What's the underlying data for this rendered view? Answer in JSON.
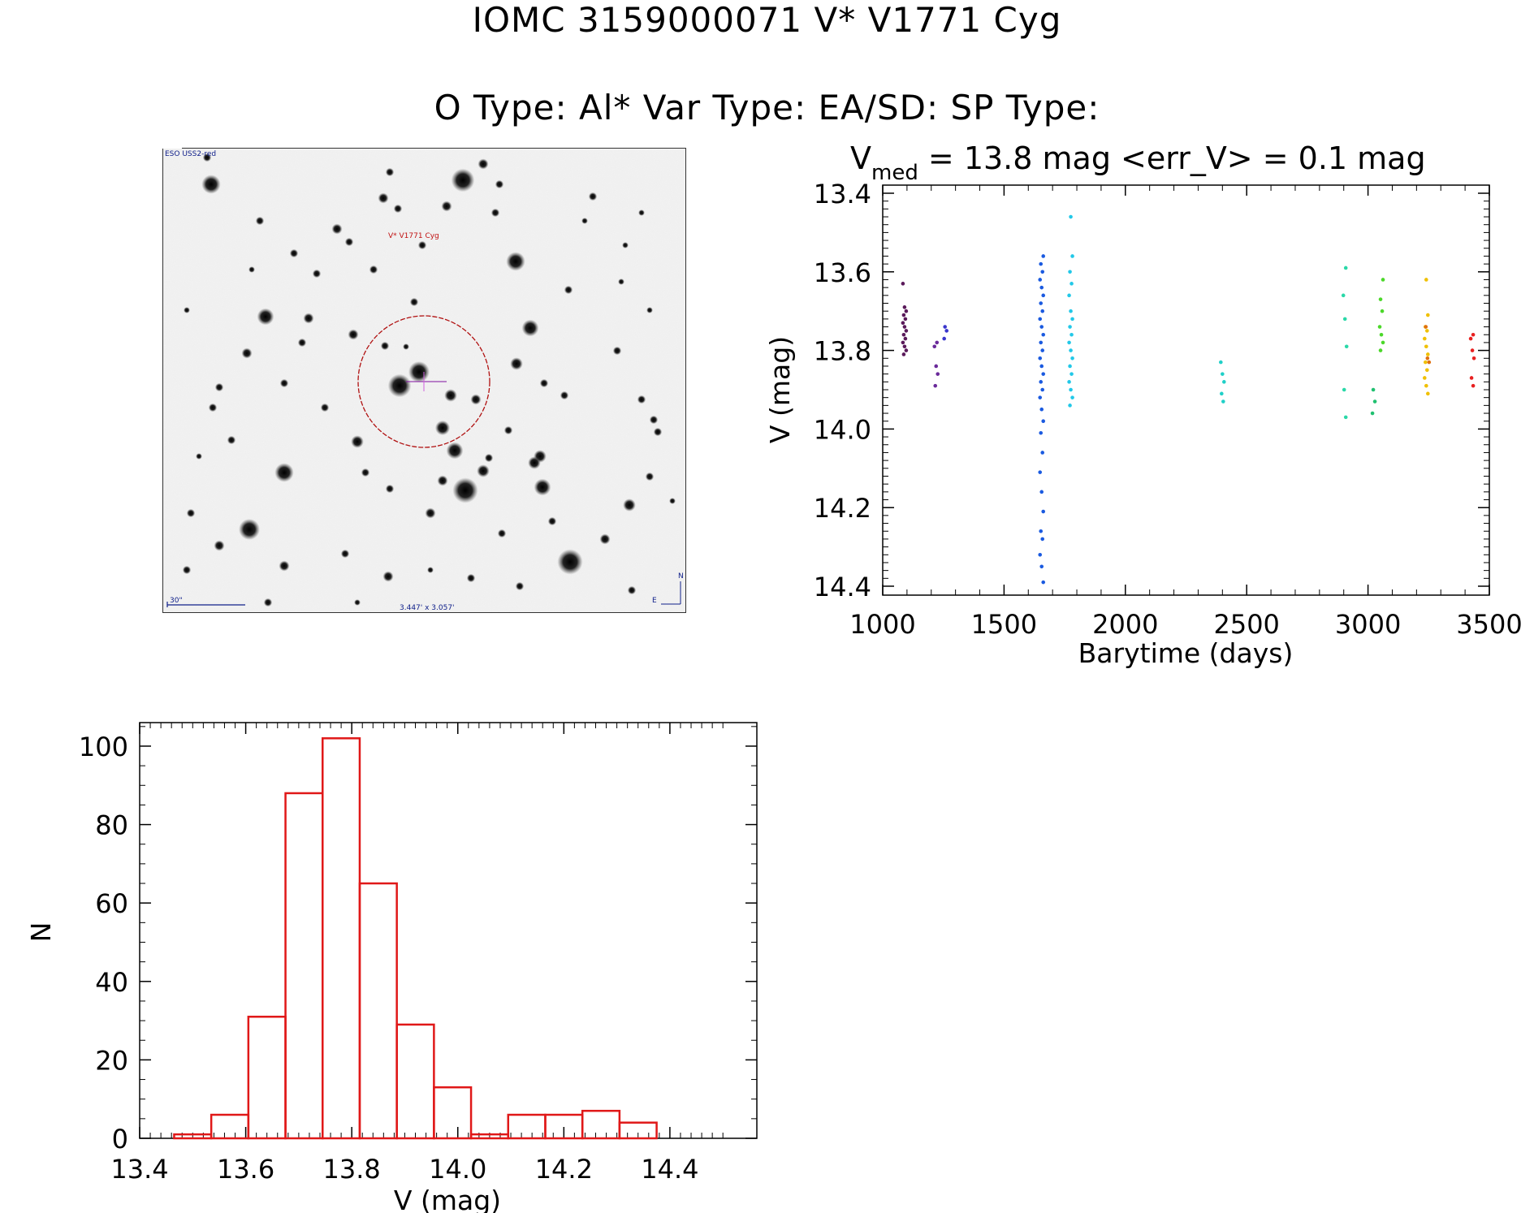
{
  "header": {
    "line1": "IOMC 3159000071    V* V1771 Cyg",
    "line2": "O Type: Al*  Var Type: EA/SD:  SP Type:"
  },
  "finder": {
    "survey_label": "ESO USS2-red",
    "target_label": "V* V1771 Cyg",
    "scale_label": "30\"",
    "size_label": "3.447' x 3.057'",
    "north_label": "N",
    "east_label": "E",
    "circle_color": "#b01010"
  },
  "chart_data": [
    {
      "type": "scatter",
      "annotation": {
        "prefix": "V",
        "subscript": "med",
        "rest": " = 13.8 mag <err_V> = 0.1 mag"
      },
      "xlabel": "Barytime (days)",
      "ylabel": "V (mag)",
      "xlim": [
        1000,
        3500
      ],
      "ylim": [
        14.4,
        13.4
      ],
      "y_inverted": true,
      "x_ticks": [
        1000,
        1500,
        2000,
        2500,
        3000,
        3500
      ],
      "y_ticks": [
        "13.4",
        "13.6",
        "13.8",
        "14.0",
        "14.2",
        "14.4"
      ],
      "groups": [
        {
          "x": 1090,
          "color": "#5a1a5a",
          "y": [
            13.63,
            13.69,
            13.7,
            13.71,
            13.72,
            13.73,
            13.74,
            13.75,
            13.76,
            13.77,
            13.78,
            13.79,
            13.8,
            13.81
          ]
        },
        {
          "x": 1220,
          "color": "#6a2a9a",
          "y": [
            13.78,
            13.79,
            13.84,
            13.86,
            13.89
          ]
        },
        {
          "x": 1260,
          "color": "#3a36cc",
          "y": [
            13.74,
            13.75,
            13.77
          ]
        },
        {
          "x": 1655,
          "color": "#1a5ae0",
          "y": [
            13.56,
            13.58,
            13.6,
            13.62,
            13.64,
            13.66,
            13.68,
            13.7,
            13.72,
            13.74,
            13.76,
            13.78,
            13.8,
            13.82,
            13.84,
            13.86,
            13.88,
            13.9,
            13.92,
            13.95,
            13.98,
            14.01,
            14.06,
            14.11,
            14.16,
            14.21,
            14.26,
            14.28,
            14.32,
            14.35,
            14.39
          ]
        },
        {
          "x": 1775,
          "color": "#22c8e8",
          "y": [
            13.46,
            13.56,
            13.6,
            13.63,
            13.66,
            13.7,
            13.72,
            13.74,
            13.76,
            13.78,
            13.8,
            13.82,
            13.84,
            13.86,
            13.88,
            13.9,
            13.92,
            13.94
          ]
        },
        {
          "x": 2400,
          "color": "#20d0c8",
          "y": [
            13.83,
            13.86,
            13.88,
            13.91,
            13.93
          ]
        },
        {
          "x": 2905,
          "color": "#2ad8a8",
          "y": [
            13.59,
            13.66,
            13.72,
            13.79,
            13.9,
            13.97
          ]
        },
        {
          "x": 3025,
          "color": "#20c070",
          "y": [
            13.9,
            13.93,
            13.96
          ]
        },
        {
          "x": 3055,
          "color": "#4cd82a",
          "y": [
            13.62,
            13.67,
            13.7,
            13.74,
            13.76,
            13.78,
            13.8
          ]
        },
        {
          "x": 3240,
          "color": "#f0c000",
          "y": [
            13.62,
            13.71,
            13.74,
            13.75,
            13.77,
            13.79,
            13.81,
            13.83,
            13.85,
            13.87,
            13.89,
            13.91
          ]
        },
        {
          "x": 3245,
          "color": "#e07010",
          "y": [
            13.74,
            13.82,
            13.83
          ]
        },
        {
          "x": 3430,
          "color": "#e82020",
          "y": [
            13.76,
            13.77,
            13.8,
            13.82,
            13.87,
            13.89
          ]
        }
      ]
    },
    {
      "type": "bar",
      "xlabel": "V (mag)",
      "ylabel": "N",
      "xlim": [
        13.4,
        14.5
      ],
      "ylim": [
        0,
        106
      ],
      "x_ticks": [
        "13.4",
        "13.6",
        "13.8",
        "14.0",
        "14.2",
        "14.4"
      ],
      "y_ticks": [
        "0",
        "20",
        "40",
        "60",
        "80",
        "100"
      ],
      "bar_color": "#e01818",
      "bin_width": 0.07,
      "bin_start": 13.465,
      "values": [
        1,
        6,
        31,
        88,
        102,
        65,
        29,
        13,
        1,
        6,
        6,
        7,
        4
      ]
    }
  ]
}
